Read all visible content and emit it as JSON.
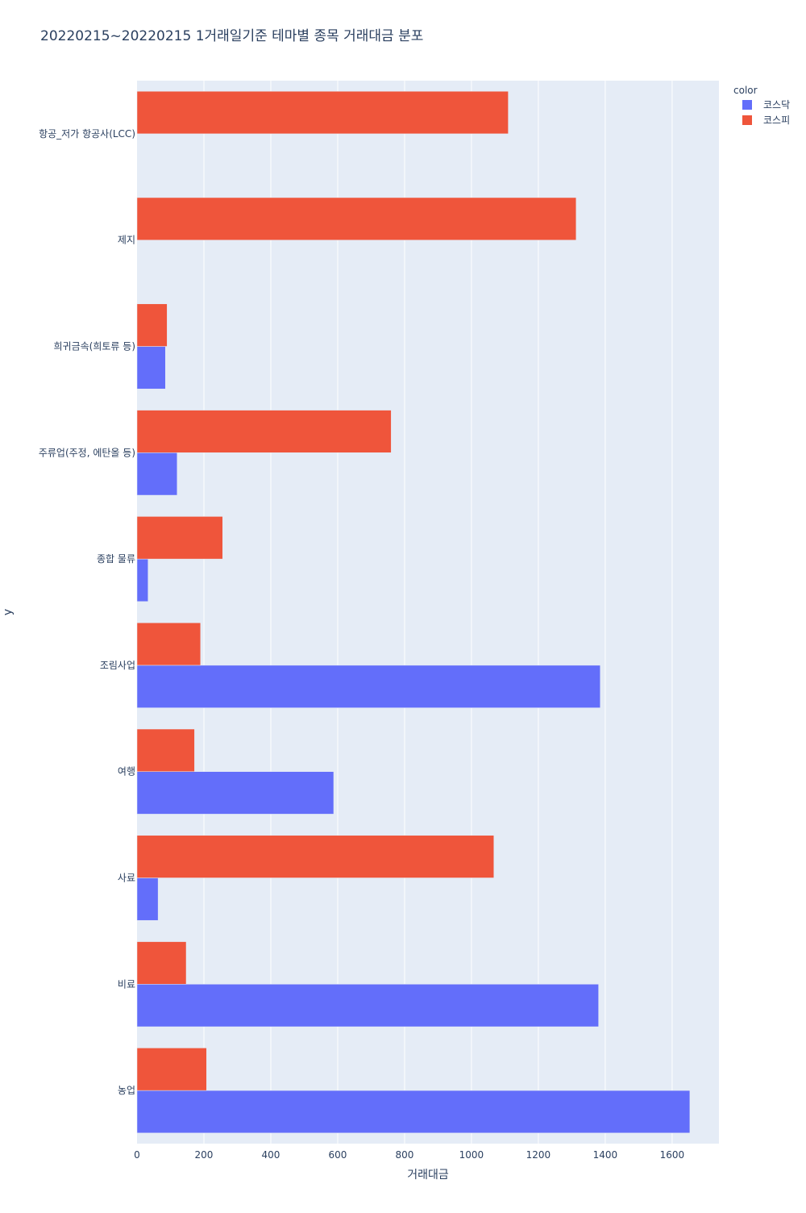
{
  "chart_data": {
    "type": "bar",
    "orientation": "horizontal",
    "barmode": "group",
    "title": "20220215~20220215 1거래일기준 테마별 종목 거래대금 분포",
    "xlabel": "거래대금",
    "ylabel": "y",
    "xlim": [
      0,
      1740
    ],
    "xticks": [
      0,
      200,
      400,
      600,
      800,
      1000,
      1200,
      1400,
      1600
    ],
    "categories": [
      "항공_저가 항공사(LCC)",
      "제지",
      "희귀금속(희토류 등)",
      "주류업(주정, 에탄올 등)",
      "종합 물류",
      "조림사업",
      "여행",
      "사료",
      "비료",
      "농업"
    ],
    "legend": {
      "title": "color",
      "position": "top-right"
    },
    "series": [
      {
        "name": "코스닥",
        "color": "#636efa",
        "values": [
          0,
          0,
          85,
          120,
          33,
          1385,
          588,
          63,
          1380,
          1653
        ]
      },
      {
        "name": "코스피",
        "color": "#ef553b",
        "values": [
          1110,
          1313,
          90,
          760,
          256,
          190,
          172,
          1067,
          147,
          208
        ]
      }
    ]
  }
}
